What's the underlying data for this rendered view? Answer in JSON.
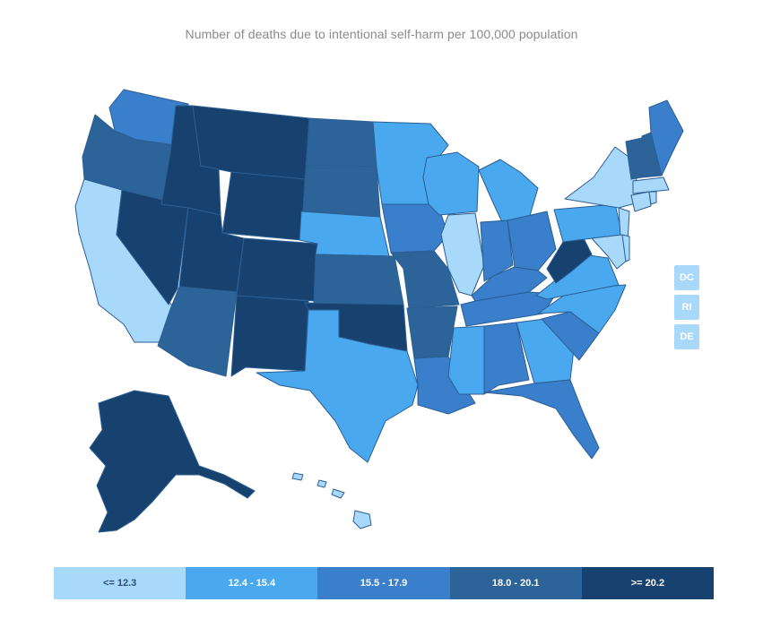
{
  "title": "Number of deaths due to intentional self-harm per 100,000 population",
  "colors": {
    "bin1": "#a8d8fa",
    "bin2": "#4aa8ef",
    "bin3": "#3a7fcb",
    "bin4": "#2c6499",
    "bin5": "#17426f",
    "border": "#2b5e93"
  },
  "legend": [
    {
      "label": "<= 12.3",
      "color": "#a8d8fa",
      "text_color": "#2c4f74"
    },
    {
      "label": "12.4 - 15.4",
      "color": "#4aa8ef",
      "text_color": "#ffffff"
    },
    {
      "label": "15.5 - 17.9",
      "color": "#3a7fcb",
      "text_color": "#ffffff"
    },
    {
      "label": "18.0 - 20.1",
      "color": "#2c6499",
      "text_color": "#ffffff"
    },
    {
      "label": ">= 20.2",
      "color": "#17426f",
      "text_color": "#ffffff"
    }
  ],
  "small_states": [
    {
      "label": "DC",
      "color": "#a8d8fa"
    },
    {
      "label": "RI",
      "color": "#a8d8fa"
    },
    {
      "label": "DE",
      "color": "#a8d8fa"
    }
  ],
  "state_bins": {
    "WA": 3,
    "OR": 4,
    "CA": 1,
    "NV": 5,
    "ID": 5,
    "MT": 5,
    "WY": 5,
    "UT": 5,
    "AZ": 4,
    "CO": 5,
    "NM": 5,
    "ND": 4,
    "SD": 4,
    "NE": 2,
    "KS": 4,
    "OK": 5,
    "TX": 2,
    "MN": 2,
    "IA": 3,
    "MO": 4,
    "AR": 4,
    "LA": 3,
    "WI": 2,
    "IL": 1,
    "MI": 2,
    "IN": 3,
    "OH": 3,
    "KY": 3,
    "TN": 3,
    "MS": 2,
    "AL": 3,
    "GA": 2,
    "FL": 3,
    "SC": 3,
    "NC": 2,
    "VA": 2,
    "WV": 5,
    "PA": 2,
    "NY": 1,
    "NJ": 1,
    "MD": 1,
    "DE": 1,
    "CT": 1,
    "RI": 1,
    "MA": 1,
    "VT": 4,
    "NH": 4,
    "ME": 3,
    "AK": 5,
    "HI": 1,
    "DC": 1
  }
}
